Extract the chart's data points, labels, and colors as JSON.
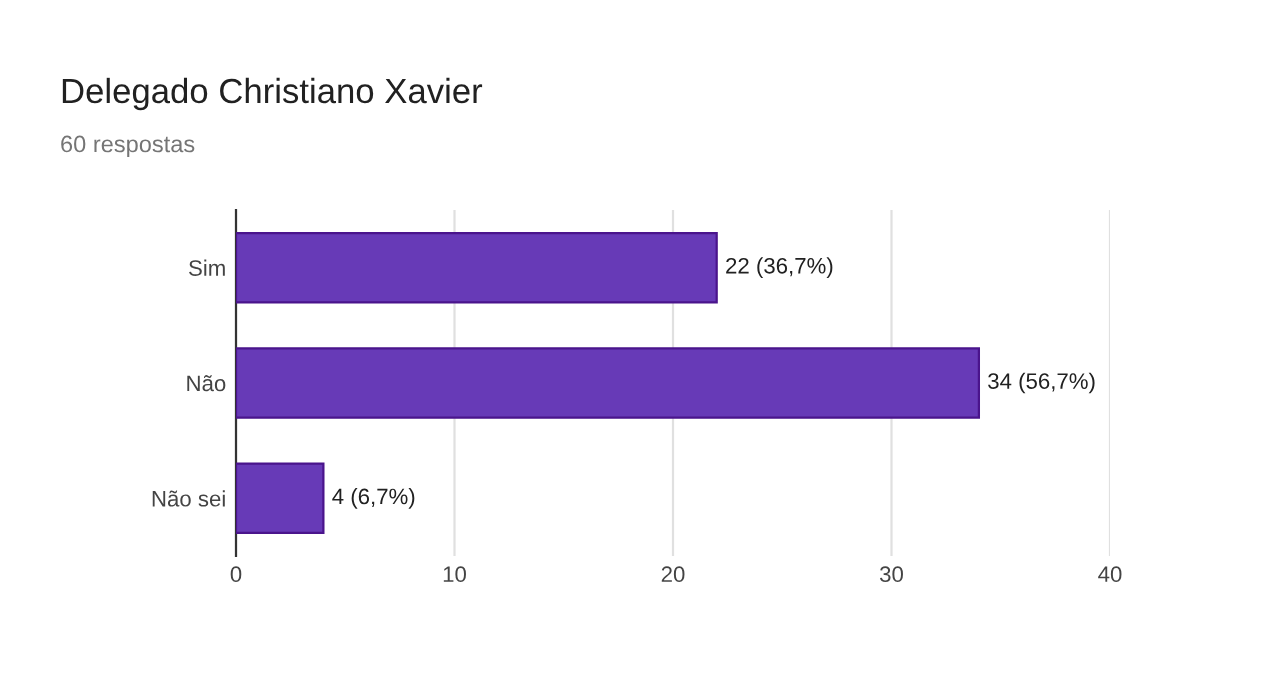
{
  "chart_data": {
    "type": "bar",
    "orientation": "horizontal",
    "title": "Delegado Christiano Xavier",
    "subtitle": "60 respostas",
    "categories": [
      "Sim",
      "Não",
      "Não sei"
    ],
    "values": [
      22,
      34,
      4
    ],
    "value_labels": [
      "22 (36,7%)",
      "34 (56,7%)",
      "4 (6,7%)"
    ],
    "color": "#673ab7",
    "xlim": [
      0,
      40
    ],
    "xticks": [
      0,
      10,
      20,
      30,
      40
    ],
    "grid": "x",
    "legend": false
  }
}
